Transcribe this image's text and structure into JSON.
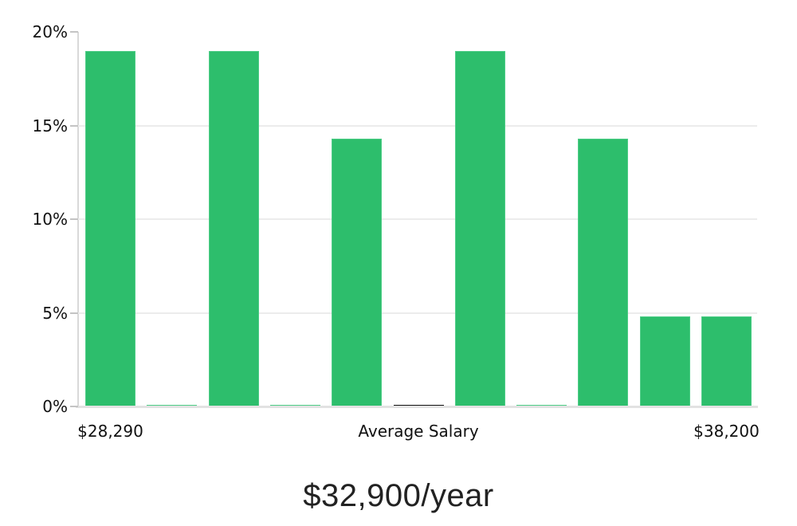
{
  "chart_data": {
    "type": "bar",
    "subtype": "salary-distribution-histogram",
    "title": "$32,900/year",
    "xlabel": "",
    "ylabel": "",
    "ylim": [
      0,
      20
    ],
    "grid": "horizontal-only",
    "legend": "none",
    "y_ticks": [
      {
        "label": "0%",
        "value": 0
      },
      {
        "label": "5%",
        "value": 5
      },
      {
        "label": "10%",
        "value": 10
      },
      {
        "label": "15%",
        "value": 15
      },
      {
        "label": "20%",
        "value": 20
      }
    ],
    "x_tick_labels": [
      {
        "label": "$28,290",
        "bin_index": 0
      },
      {
        "label": "Average Salary",
        "bin_index": 5
      },
      {
        "label": "$38,200",
        "bin_index": 10
      }
    ],
    "bars": [
      {
        "value": 19,
        "role": "bin"
      },
      {
        "value": 0.1,
        "role": "bin"
      },
      {
        "value": 19,
        "role": "bin"
      },
      {
        "value": 0.1,
        "role": "bin"
      },
      {
        "value": 14.3,
        "role": "bin"
      },
      {
        "value": 0.1,
        "role": "average-marker"
      },
      {
        "value": 19,
        "role": "bin"
      },
      {
        "value": 0.1,
        "role": "bin"
      },
      {
        "value": 14.3,
        "role": "bin"
      },
      {
        "value": 4.8,
        "role": "bin"
      },
      {
        "value": 4.8,
        "role": "bin"
      }
    ],
    "colors": {
      "bar": "#2dbe6c",
      "bar_edge": "#4ecd87",
      "average_marker": "#111111",
      "gridline": "#ececec",
      "axis_line": "#d9d9d9",
      "bottom_axis_line": "#e2e2e2",
      "tick": "#c4c4c4",
      "label_text": "#111111",
      "title_text": "#222222"
    }
  }
}
